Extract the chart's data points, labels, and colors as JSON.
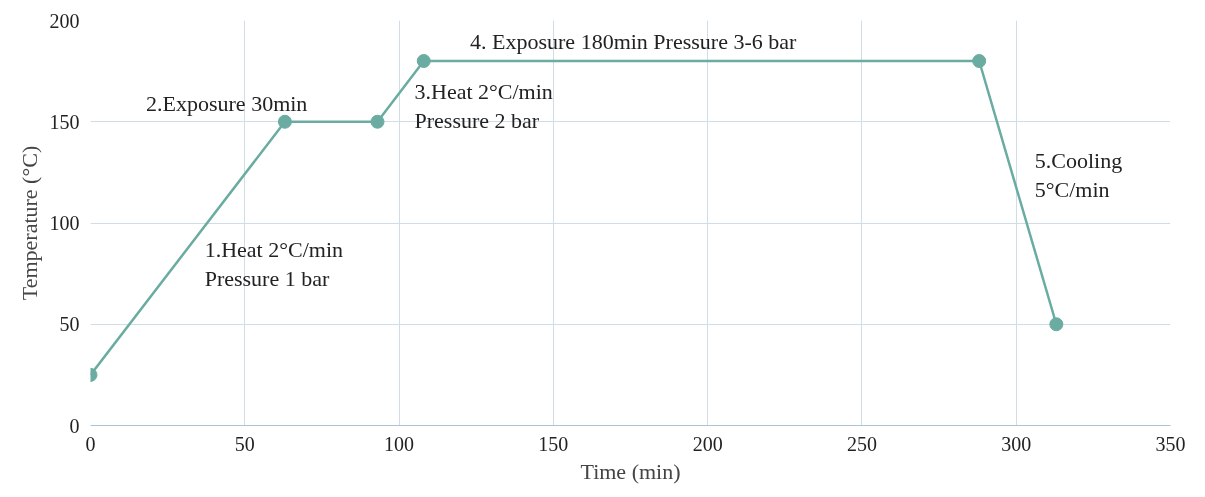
{
  "chart_data": {
    "type": "line",
    "xlabel": "Time (min)",
    "ylabel": "Temperature (°C)",
    "x": [
      0,
      63,
      93,
      108,
      288,
      313
    ],
    "series": [
      {
        "color": "#6aaca1",
        "values": [
          25,
          150,
          150,
          180,
          180,
          50
        ]
      }
    ],
    "xlim": [
      0,
      350
    ],
    "xticks": [
      0,
      50,
      100,
      150,
      200,
      250,
      300,
      350
    ],
    "ylim": [
      0,
      200
    ],
    "yticks": [
      0,
      50,
      100,
      150,
      200
    ],
    "grid": true,
    "marker": "circle",
    "line_style": "solid",
    "annotations": [
      "1.Heat 2°C/min\nPressure 1 bar",
      "2.Exposure 30min",
      "3.Heat 2°C/min\nPressure 2 bar",
      "4. Exposure 180min Pressure 3-6 bar",
      "5.Cooling\n5°C/min"
    ]
  }
}
